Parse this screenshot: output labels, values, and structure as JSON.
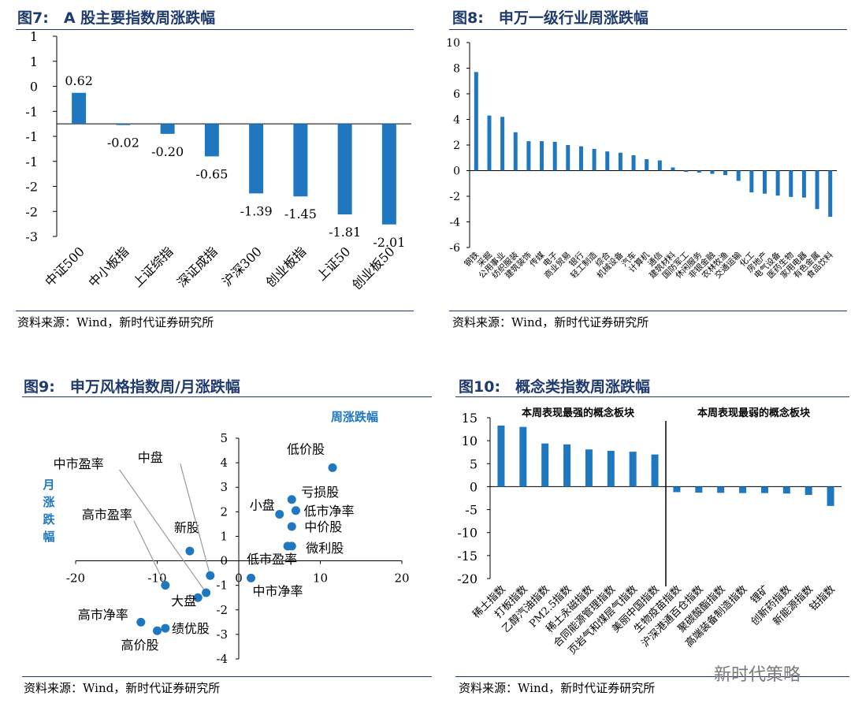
{
  "panels": [
    {
      "title": "图7:　A 股主要指数周涨跌幅",
      "source": "资料来源：Wind，新时代证券研究所"
    },
    {
      "title": "图8:　申万一级行业周涨跌幅",
      "source": "资料来源：Wind，新时代证券研究所"
    },
    {
      "title": "图9:　申万风格指数周/月涨跌幅",
      "source": "资料来源：Wind，新时代证券研究所"
    },
    {
      "title": "图10:　概念类指数周涨跌幅",
      "source": "资料来源：Wind，新时代证券研究所"
    }
  ],
  "watermark": "新时代策略",
  "colors": {
    "bar": "#1f77c0",
    "title": "#1f3a6e",
    "annotation": "#1f77c0"
  },
  "chart_data": [
    {
      "type": "bar",
      "categories": [
        "中证500",
        "中小板指",
        "上证综指",
        "深证成指",
        "沪深300",
        "创业板指",
        "上证50",
        "创业板50"
      ],
      "values": [
        0.62,
        -0.02,
        -0.2,
        -0.65,
        -1.39,
        -1.45,
        -1.81,
        -2.01
      ],
      "data_labels": [
        "0.62",
        "-0.02",
        "-0.20",
        "-0.65",
        "-1.39",
        "-1.45",
        "-1.81",
        "-2.01"
      ],
      "yticks": [
        "1",
        "1",
        "0",
        "-1",
        "-1",
        "-1",
        "-2",
        "-2",
        "-3"
      ],
      "ylim": [
        -2.25,
        1.75
      ]
    },
    {
      "type": "bar",
      "categories": [
        "钢铁",
        "采掘",
        "公用事业",
        "纺织服装",
        "建筑装饰",
        "传媒",
        "电子",
        "商业贸易",
        "银行",
        "轻工制造",
        "综合",
        "机械设备",
        "汽车",
        "计算机",
        "通信",
        "建筑材料",
        "国防军工",
        "休闲服务",
        "非银金融",
        "农林牧渔",
        "交通运输",
        "化工",
        "房地产",
        "电气设备",
        "医药生物",
        "家用电器",
        "有色金属",
        "食品饮料"
      ],
      "values": [
        7.7,
        4.3,
        4.2,
        3.0,
        2.3,
        2.3,
        2.25,
        2.0,
        1.9,
        1.7,
        1.5,
        1.4,
        1.2,
        0.9,
        0.8,
        0.25,
        -0.1,
        -0.15,
        -0.25,
        -0.35,
        -0.8,
        -1.7,
        -1.8,
        -1.95,
        -2.05,
        -2.1,
        -3.0,
        -3.6
      ],
      "yticks": [
        "10",
        "8",
        "6",
        "4",
        "2",
        "0",
        "-2",
        "-4",
        "-6"
      ],
      "ylim": [
        -6,
        10
      ]
    },
    {
      "type": "scatter",
      "xlabel": "周涨跌幅",
      "ylabel": "月涨跌幅",
      "xticks": [
        "-20",
        "-10",
        "0",
        "10",
        "20"
      ],
      "yticks": [
        "5",
        "4",
        "3",
        "2",
        "1",
        "0",
        "-1",
        "-2",
        "-3",
        "-4"
      ],
      "xlim": [
        -20,
        20
      ],
      "ylim": [
        -4,
        5
      ],
      "points": [
        {
          "label": "低价股",
          "x": 11.5,
          "y": 3.8
        },
        {
          "label": "亏损股",
          "x": 6.5,
          "y": 2.5
        },
        {
          "label": "小盘",
          "x": 5.0,
          "y": 1.9
        },
        {
          "label": "低市净率",
          "x": 7.0,
          "y": 2.05
        },
        {
          "label": "中价股",
          "x": 6.5,
          "y": 1.4
        },
        {
          "label": "微利股",
          "x": 6.5,
          "y": 0.6
        },
        {
          "label": "低市盈率",
          "x": 6.0,
          "y": 0.6
        },
        {
          "label": "中市净率",
          "x": 1.5,
          "y": -0.7
        },
        {
          "label": "新股",
          "x": -6.0,
          "y": 0.4
        },
        {
          "label": "中盘",
          "x": -3.5,
          "y": -0.6
        },
        {
          "label": "中市盈率",
          "x": -4.0,
          "y": -1.3
        },
        {
          "label": "高市盈率",
          "x": -9.0,
          "y": -1.0
        },
        {
          "label": "大盘",
          "x": -5.0,
          "y": -1.5
        },
        {
          "label": "高市净率",
          "x": -12.0,
          "y": -2.5
        },
        {
          "label": "高价股",
          "x": -10.0,
          "y": -2.85
        },
        {
          "label": "绩优股",
          "x": -9.0,
          "y": -2.75
        }
      ]
    },
    {
      "type": "bar",
      "categories": [
        "稀土指数",
        "打板指数",
        "乙醇汽油指数",
        "PM2.5指数",
        "稀土永磁指数",
        "合同能源管理指数",
        "页岩气和煤层气指数",
        "美丽中国指数",
        "生物疫苗指数",
        "沪深港通百仓指数",
        "聚碳酸酯指数",
        "高端装备制造指数",
        "锂矿",
        "创新药指数",
        "新能源指数",
        "钴指数"
      ],
      "values": [
        13.3,
        13.0,
        9.4,
        9.2,
        8.1,
        7.8,
        7.6,
        7.0,
        -1.2,
        -1.3,
        -1.35,
        -1.4,
        -1.4,
        -1.5,
        -1.8,
        -4.2
      ],
      "yticks": [
        "15",
        "10",
        "5",
        "0",
        "-5",
        "-10",
        "-15",
        "-20"
      ],
      "ylim": [
        -20,
        15
      ],
      "annotations": [
        "本周表现最强的概念板块",
        "本周表现最弱的概念板块"
      ]
    }
  ]
}
